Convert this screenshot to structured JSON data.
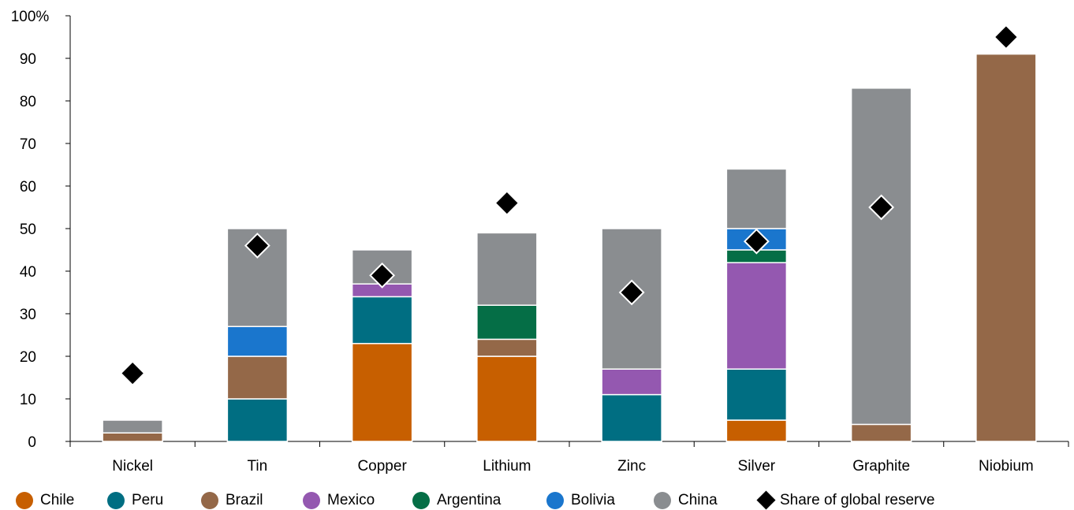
{
  "chart_data": {
    "type": "bar",
    "stacked": true,
    "categories": [
      "Nickel",
      "Tin",
      "Copper",
      "Lithium",
      "Zinc",
      "Silver",
      "Graphite",
      "Niobium"
    ],
    "y_ticks": [
      "0",
      "10",
      "20",
      "30",
      "40",
      "50",
      "60",
      "70",
      "80",
      "90",
      "100%"
    ],
    "ylim": [
      0,
      100
    ],
    "grid": false,
    "legend_position": "bottom",
    "series": [
      {
        "name": "Chile",
        "color": "#c75f00",
        "values": [
          0,
          0,
          23,
          20,
          0,
          5,
          0,
          0
        ]
      },
      {
        "name": "Peru",
        "color": "#006e82",
        "values": [
          0,
          10,
          11,
          0,
          11,
          12,
          0,
          0
        ]
      },
      {
        "name": "Brazil",
        "color": "#946848",
        "values": [
          2,
          10,
          0,
          4,
          0,
          0,
          4,
          91
        ]
      },
      {
        "name": "Mexico",
        "color": "#9458b0",
        "values": [
          0,
          0,
          3,
          0,
          6,
          25,
          0,
          0
        ]
      },
      {
        "name": "Argentina",
        "color": "#056e46",
        "values": [
          0,
          0,
          0,
          8,
          0,
          3,
          0,
          0
        ]
      },
      {
        "name": "Bolivia",
        "color": "#1a76cd",
        "values": [
          0,
          7,
          0,
          0,
          0,
          5,
          0,
          0
        ]
      },
      {
        "name": "China",
        "color": "#8a8d90",
        "values": [
          3,
          23,
          8,
          17,
          33,
          14,
          79,
          0
        ]
      }
    ],
    "markers": {
      "name": "Share of global reserve",
      "shape": "diamond",
      "color": "#000000",
      "values": [
        16,
        46,
        39,
        56,
        35,
        47,
        55,
        95
      ]
    }
  }
}
